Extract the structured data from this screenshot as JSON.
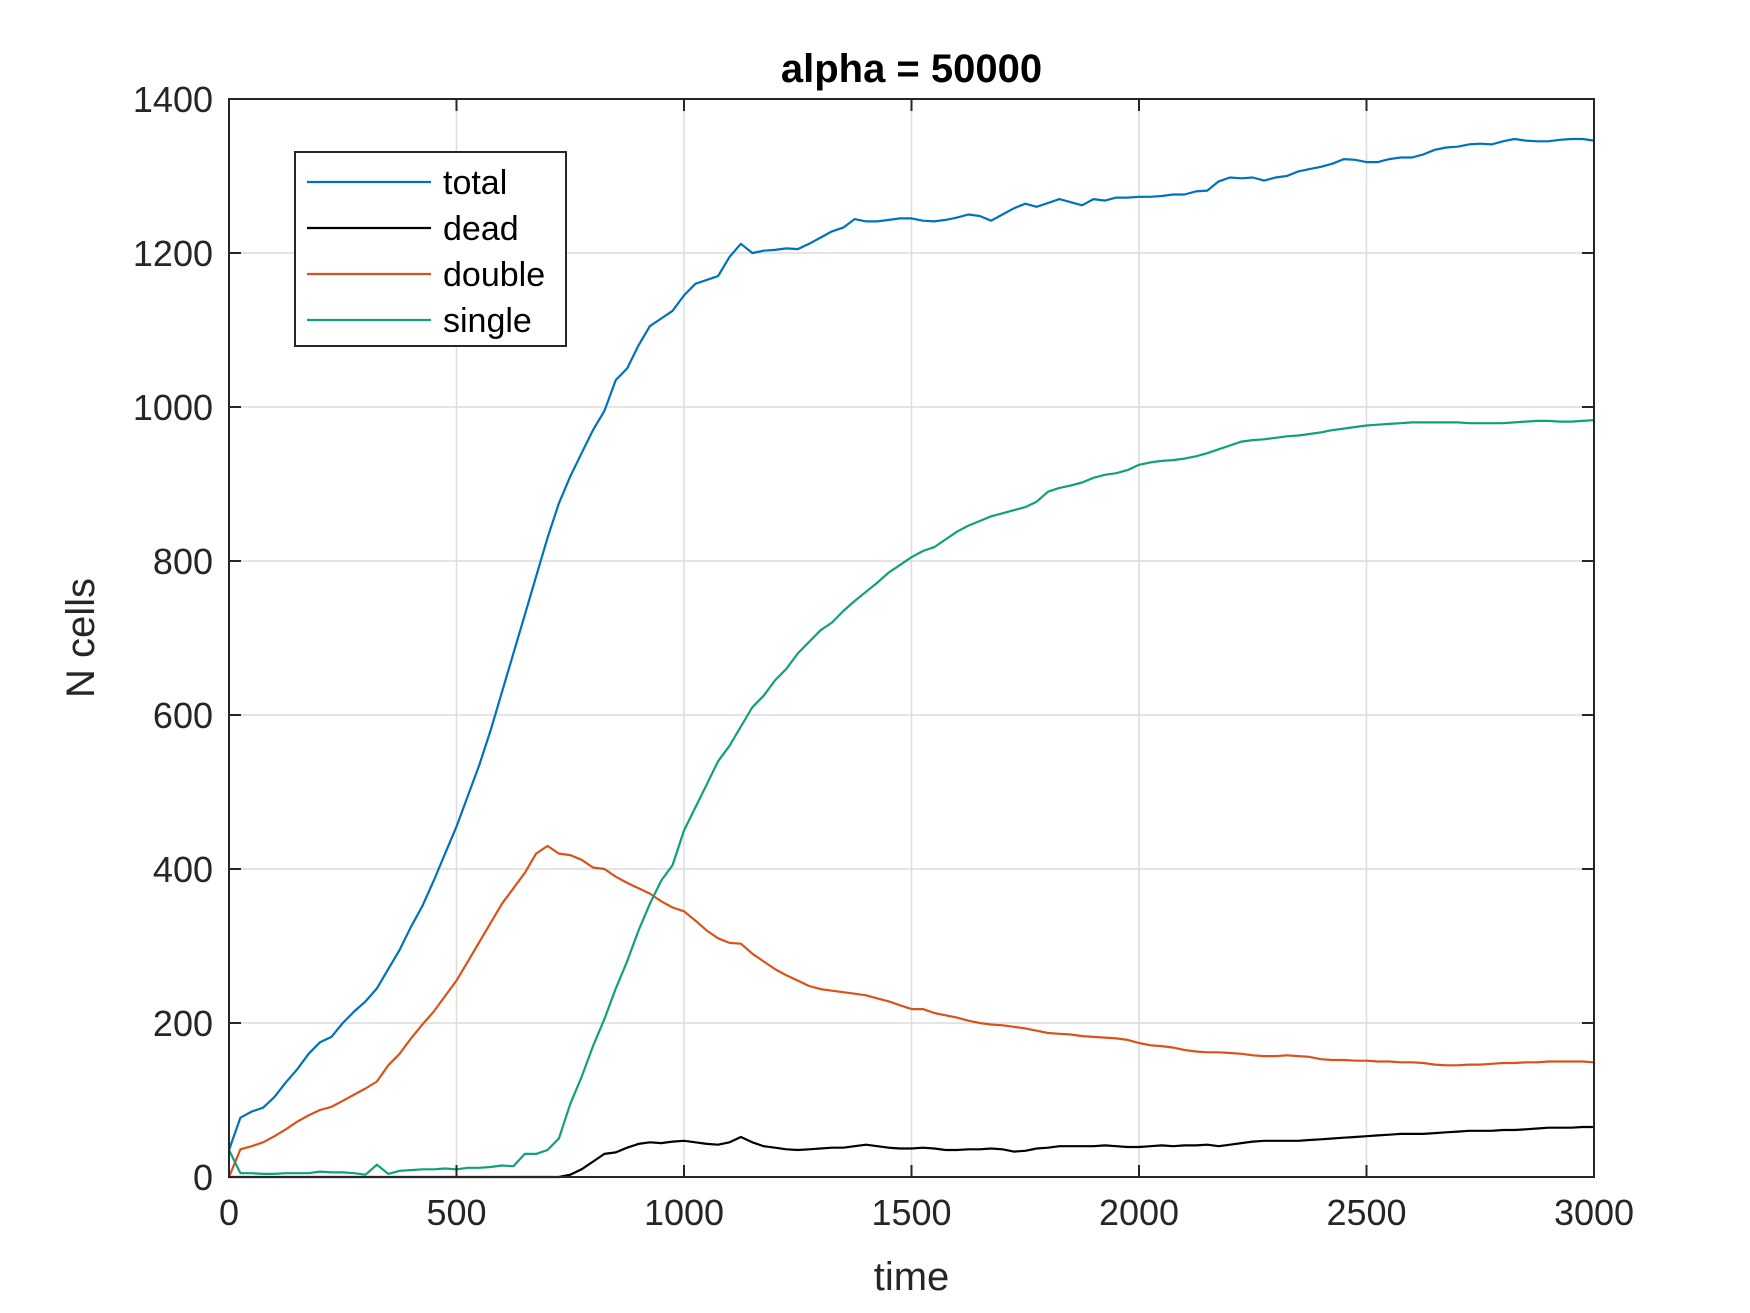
{
  "chart_data": {
    "type": "line",
    "title": "alpha = 50000",
    "xlabel": "time",
    "ylabel": "N cells",
    "xlim": [
      0,
      3000
    ],
    "ylim": [
      0,
      1400
    ],
    "xticks": [
      0,
      500,
      1000,
      1500,
      2000,
      2500,
      3000
    ],
    "yticks": [
      0,
      200,
      400,
      600,
      800,
      1000,
      1200,
      1400
    ],
    "grid": true,
    "legend_position": "top-left",
    "x": [
      0,
      25,
      50,
      75,
      100,
      125,
      150,
      175,
      200,
      225,
      250,
      275,
      300,
      325,
      350,
      375,
      400,
      425,
      450,
      475,
      500,
      525,
      550,
      575,
      600,
      625,
      650,
      675,
      700,
      725,
      750,
      775,
      800,
      825,
      850,
      875,
      900,
      925,
      950,
      975,
      1000,
      1025,
      1050,
      1075,
      1100,
      1125,
      1150,
      1175,
      1200,
      1225,
      1250,
      1275,
      1300,
      1325,
      1350,
      1375,
      1400,
      1425,
      1450,
      1475,
      1500,
      1525,
      1550,
      1575,
      1600,
      1625,
      1650,
      1675,
      1700,
      1725,
      1750,
      1775,
      1800,
      1825,
      1850,
      1875,
      1900,
      1925,
      1950,
      1975,
      2000,
      2025,
      2050,
      2075,
      2100,
      2125,
      2150,
      2175,
      2200,
      2225,
      2250,
      2275,
      2300,
      2325,
      2350,
      2375,
      2400,
      2425,
      2450,
      2475,
      2500,
      2525,
      2550,
      2575,
      2600,
      2625,
      2650,
      2675,
      2700,
      2725,
      2750,
      2775,
      2800,
      2825,
      2850,
      2875,
      2900,
      2925,
      2950,
      2975,
      3000
    ],
    "series": [
      {
        "name": "total",
        "color": "#0072BD",
        "values": [
          35,
          77,
          85,
          90,
          104,
          123,
          140,
          160,
          175,
          182,
          200,
          215,
          228,
          245,
          270,
          295,
          325,
          352,
          385,
          420,
          455,
          495,
          535,
          580,
          630,
          680,
          730,
          780,
          830,
          875,
          910,
          940,
          970,
          995,
          1035,
          1050,
          1080,
          1105,
          1115,
          1125,
          1145,
          1160,
          1165,
          1170,
          1195,
          1212,
          1200,
          1203,
          1204,
          1206,
          1205,
          1212,
          1220,
          1228,
          1233,
          1244,
          1241,
          1241,
          1243,
          1245,
          1245,
          1242,
          1241,
          1243,
          1246,
          1250,
          1248,
          1242,
          1250,
          1258,
          1264,
          1260,
          1265,
          1270,
          1266,
          1262,
          1270,
          1268,
          1272,
          1272,
          1273,
          1273,
          1274,
          1276,
          1276,
          1280,
          1281,
          1293,
          1298,
          1297,
          1298,
          1294,
          1298,
          1300,
          1306,
          1309,
          1312,
          1316,
          1322,
          1321,
          1318,
          1318,
          1322,
          1324,
          1324,
          1328,
          1334,
          1337,
          1338,
          1341,
          1342,
          1341,
          1345,
          1348,
          1346,
          1345,
          1345,
          1347,
          1348,
          1348,
          1346
        ]
      },
      {
        "name": "dead",
        "color": "#000000",
        "values": [
          0,
          0,
          0,
          0,
          0,
          0,
          0,
          0,
          0,
          0,
          0,
          0,
          0,
          0,
          0,
          0,
          0,
          0,
          0,
          0,
          0,
          0,
          0,
          0,
          0,
          0,
          0,
          0,
          0,
          0,
          3,
          10,
          20,
          30,
          32,
          38,
          43,
          45,
          44,
          46,
          47,
          45,
          43,
          42,
          45,
          52,
          45,
          40,
          38,
          36,
          35,
          36,
          37,
          38,
          38,
          40,
          42,
          40,
          38,
          37,
          37,
          38,
          37,
          35,
          35,
          36,
          36,
          37,
          36,
          33,
          34,
          37,
          38,
          40,
          40,
          40,
          40,
          41,
          40,
          39,
          39,
          40,
          41,
          40,
          41,
          41,
          42,
          40,
          42,
          44,
          46,
          47,
          47,
          47,
          47,
          48,
          49,
          50,
          51,
          52,
          53,
          54,
          55,
          56,
          56,
          56,
          57,
          58,
          59,
          60,
          60,
          60,
          61,
          61,
          62,
          63,
          64,
          64,
          64,
          65,
          65
        ]
      },
      {
        "name": "double",
        "color": "#D95319",
        "values": [
          0,
          36,
          40,
          45,
          53,
          62,
          72,
          80,
          87,
          91,
          99,
          107,
          115,
          124,
          145,
          160,
          180,
          198,
          215,
          235,
          255,
          280,
          305,
          330,
          355,
          375,
          395,
          420,
          430,
          420,
          418,
          412,
          402,
          400,
          390,
          382,
          375,
          368,
          358,
          350,
          345,
          333,
          320,
          310,
          304,
          303,
          290,
          280,
          270,
          262,
          255,
          248,
          244,
          242,
          240,
          238,
          236,
          232,
          228,
          223,
          218,
          218,
          213,
          210,
          207,
          203,
          200,
          198,
          197,
          195,
          193,
          190,
          187,
          186,
          185,
          183,
          182,
          181,
          180,
          178,
          174,
          171,
          170,
          168,
          165,
          163,
          162,
          162,
          161,
          160,
          158,
          157,
          157,
          158,
          157,
          156,
          153,
          152,
          152,
          151,
          151,
          150,
          150,
          149,
          149,
          148,
          146,
          145,
          145,
          146,
          146,
          147,
          148,
          148,
          149,
          149,
          150,
          150,
          150,
          150,
          149
        ]
      },
      {
        "name": "single",
        "color": "#10A07B",
        "values": [
          35,
          5,
          5,
          4,
          4,
          5,
          5,
          5,
          7,
          6,
          6,
          5,
          3,
          16,
          4,
          8,
          9,
          10,
          10,
          11,
          10,
          12,
          12,
          13,
          15,
          14,
          30,
          30,
          35,
          50,
          95,
          130,
          170,
          205,
          245,
          280,
          320,
          355,
          385,
          405,
          450,
          480,
          510,
          540,
          560,
          585,
          610,
          625,
          645,
          660,
          680,
          695,
          710,
          720,
          735,
          748,
          760,
          772,
          785,
          795,
          805,
          813,
          818,
          828,
          838,
          846,
          852,
          858,
          862,
          866,
          870,
          877,
          890,
          895,
          898,
          902,
          908,
          912,
          914,
          918,
          925,
          928,
          930,
          931,
          933,
          936,
          940,
          945,
          950,
          955,
          957,
          958,
          960,
          962,
          963,
          965,
          967,
          970,
          972,
          974,
          976,
          977,
          978,
          979,
          980,
          980,
          980,
          980,
          980,
          979,
          979,
          979,
          979,
          980,
          981,
          982,
          982,
          981,
          981,
          982,
          983
        ]
      }
    ]
  }
}
